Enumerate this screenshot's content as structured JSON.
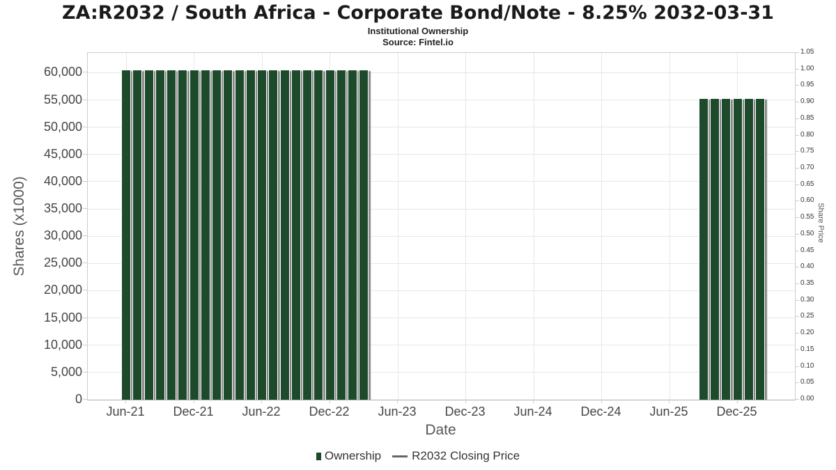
{
  "header": {
    "title": "ZA:R2032 / South Africa - Corporate Bond/Note - 8.25% 2032-03-31",
    "subtitle": "Institutional Ownership",
    "source": "Source: Fintel.io"
  },
  "chart_data": {
    "type": "bar",
    "title": "ZA:R2032 / South Africa - Corporate Bond/Note - 8.25% 2032-03-31",
    "subtitle": "Institutional Ownership",
    "source": "Source: Fintel.io",
    "xlabel": "Date",
    "ylabel_left": "Shares (x1000)",
    "ylabel_right": "Share Price",
    "x_tick_labels": [
      "Jun-21",
      "Dec-21",
      "Jun-22",
      "Dec-22",
      "Jun-23",
      "Dec-23",
      "Jun-24",
      "Dec-24",
      "Jun-25",
      "Dec-25"
    ],
    "x_range": [
      "Feb-21",
      "May-26"
    ],
    "y_left": {
      "min": 0,
      "max": 63640,
      "tick_step": 5000,
      "tick_labels": [
        "0",
        "5,000",
        "10,000",
        "15,000",
        "20,000",
        "25,000",
        "30,000",
        "35,000",
        "40,000",
        "45,000",
        "50,000",
        "55,000",
        "60,000"
      ]
    },
    "y_right": {
      "min": 0.0,
      "max": 1.05,
      "tick_step": 0.05
    },
    "grid": true,
    "legend_position": "bottom",
    "series": [
      {
        "name": "Ownership",
        "type": "column",
        "color": "#1d4a2b",
        "points": [
          {
            "date": "Jun-21",
            "value": 60400
          },
          {
            "date": "Jul-21",
            "value": 60400
          },
          {
            "date": "Aug-21",
            "value": 60400
          },
          {
            "date": "Sep-21",
            "value": 60400
          },
          {
            "date": "Oct-21",
            "value": 60400
          },
          {
            "date": "Nov-21",
            "value": 60400
          },
          {
            "date": "Dec-21",
            "value": 60400
          },
          {
            "date": "Jan-22",
            "value": 60400
          },
          {
            "date": "Feb-22",
            "value": 60400
          },
          {
            "date": "Mar-22",
            "value": 60400
          },
          {
            "date": "Apr-22",
            "value": 60400
          },
          {
            "date": "May-22",
            "value": 60400
          },
          {
            "date": "Jun-22",
            "value": 60400
          },
          {
            "date": "Jul-22",
            "value": 60400
          },
          {
            "date": "Aug-22",
            "value": 60400
          },
          {
            "date": "Sep-22",
            "value": 60400
          },
          {
            "date": "Oct-22",
            "value": 60400
          },
          {
            "date": "Nov-22",
            "value": 60400
          },
          {
            "date": "Dec-22",
            "value": 60400
          },
          {
            "date": "Jan-23",
            "value": 60400
          },
          {
            "date": "Feb-23",
            "value": 60400
          },
          {
            "date": "Mar-23",
            "value": 60400
          },
          {
            "date": "Sep-25",
            "value": 55200
          },
          {
            "date": "Oct-25",
            "value": 55200
          },
          {
            "date": "Nov-25",
            "value": 55200
          },
          {
            "date": "Dec-25",
            "value": 55200
          },
          {
            "date": "Jan-26",
            "value": 55200
          },
          {
            "date": "Feb-26",
            "value": 55200
          }
        ]
      },
      {
        "name": "R2032 Closing Price",
        "type": "line",
        "color": "#666666",
        "points": []
      }
    ]
  },
  "legend": {
    "items": [
      {
        "label": "Ownership",
        "symbol": "column",
        "color": "#1d4a2b"
      },
      {
        "label": "R2032 Closing Price",
        "symbol": "line",
        "color": "#666666"
      }
    ]
  }
}
